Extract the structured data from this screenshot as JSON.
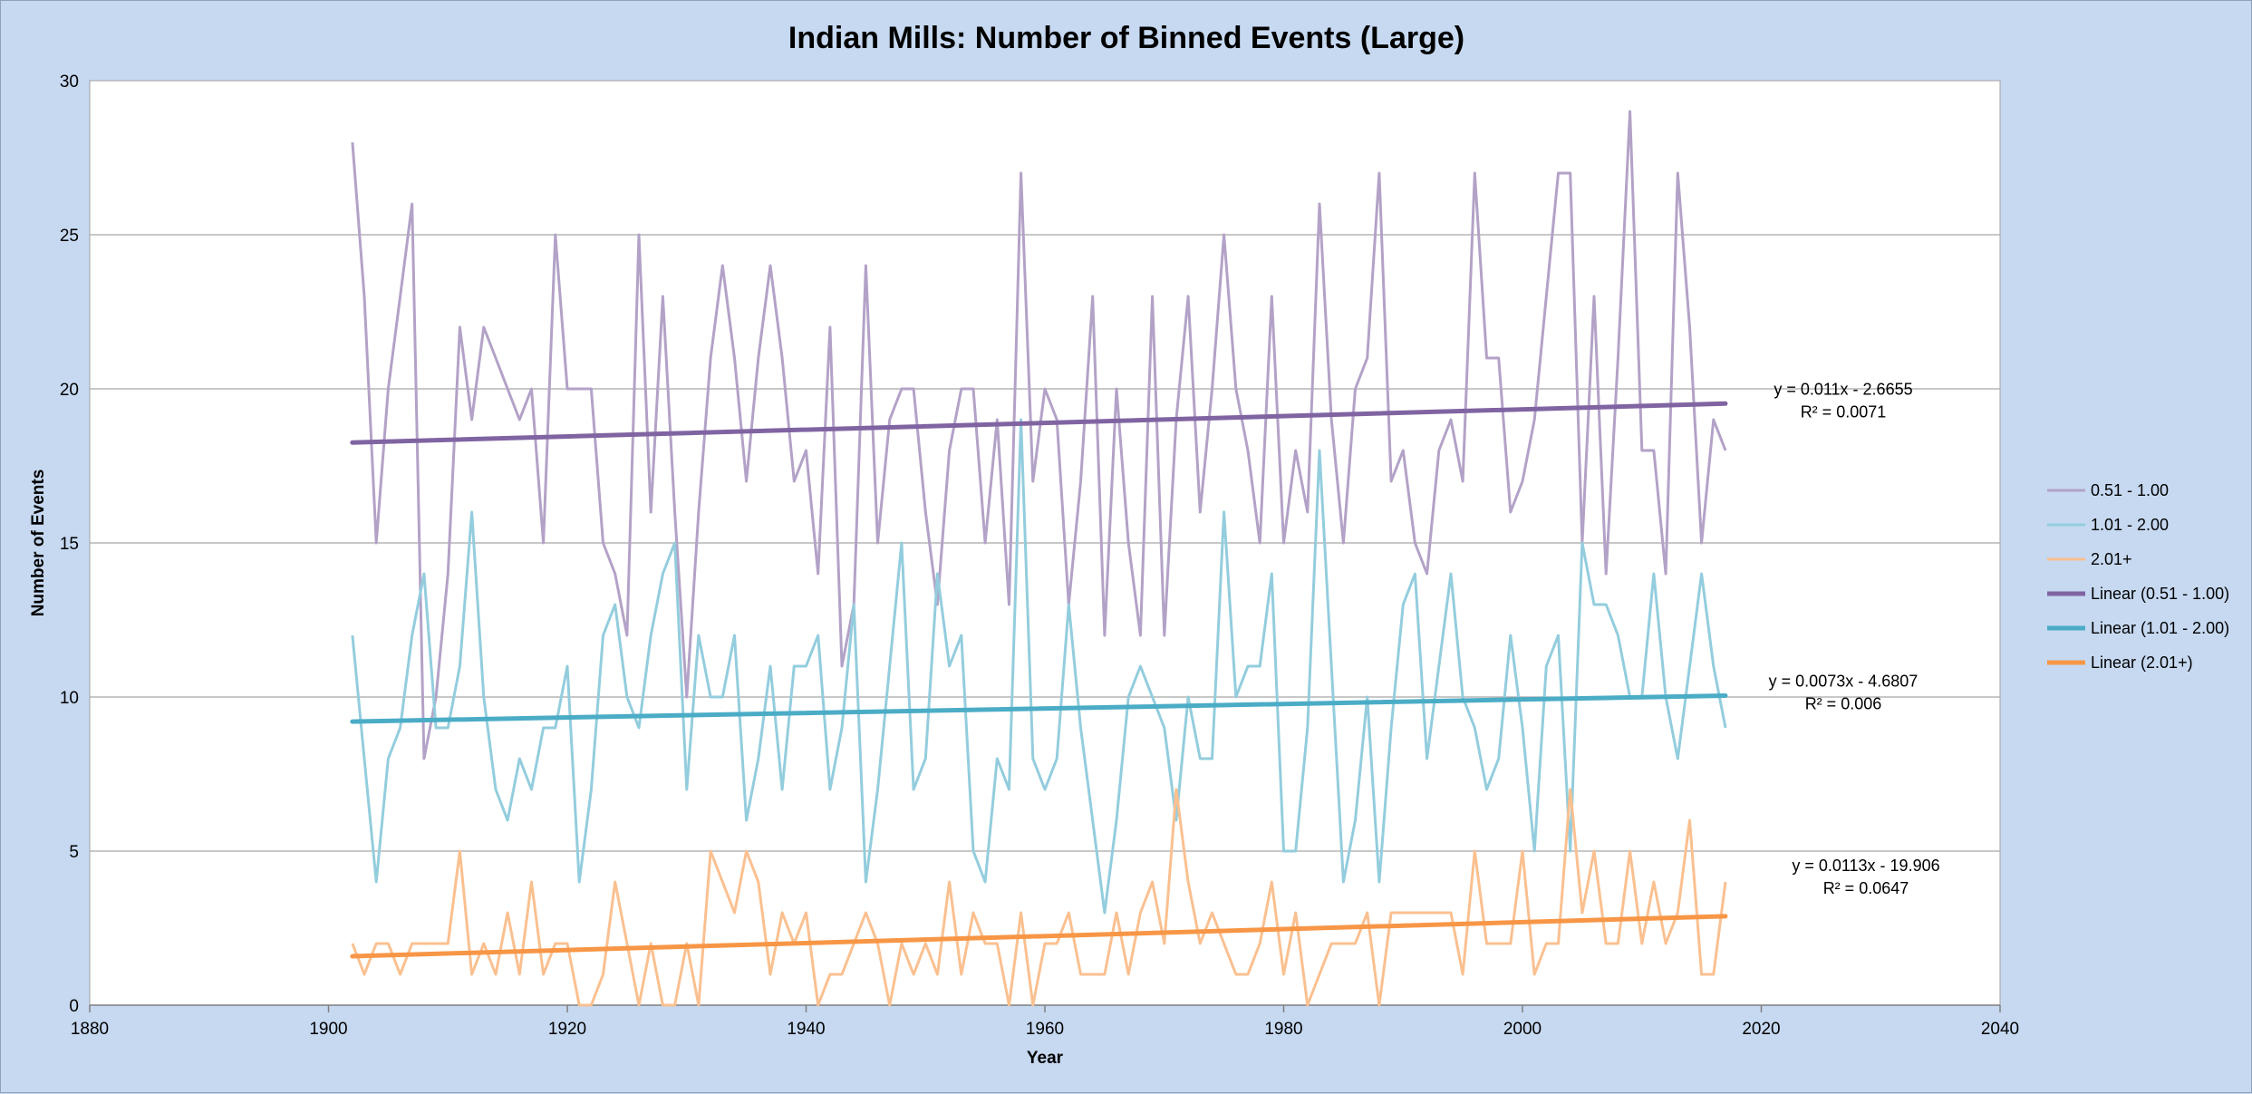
{
  "chart_data": {
    "type": "line",
    "title": "Indian Mills: Number of Binned Events (Large)",
    "xlabel": "Year",
    "ylabel": "Number of Events",
    "xlim": [
      1880,
      2040
    ],
    "ylim": [
      0,
      30
    ],
    "x_ticks": [
      1880,
      1900,
      1920,
      1940,
      1960,
      1980,
      2000,
      2020,
      2040
    ],
    "y_ticks": [
      0,
      5,
      10,
      15,
      20,
      25,
      30
    ],
    "grid": "horizontal",
    "legend_position": "right",
    "x": [
      1902,
      1903,
      1904,
      1905,
      1906,
      1907,
      1908,
      1909,
      1910,
      1911,
      1912,
      1913,
      1914,
      1915,
      1916,
      1917,
      1918,
      1919,
      1920,
      1921,
      1922,
      1923,
      1924,
      1925,
      1926,
      1927,
      1928,
      1929,
      1930,
      1931,
      1932,
      1933,
      1934,
      1935,
      1936,
      1937,
      1938,
      1939,
      1940,
      1941,
      1942,
      1943,
      1944,
      1945,
      1946,
      1947,
      1948,
      1949,
      1950,
      1951,
      1952,
      1953,
      1954,
      1955,
      1956,
      1957,
      1958,
      1959,
      1960,
      1961,
      1962,
      1963,
      1964,
      1965,
      1966,
      1967,
      1968,
      1969,
      1970,
      1971,
      1972,
      1973,
      1974,
      1975,
      1976,
      1977,
      1978,
      1979,
      1980,
      1981,
      1982,
      1983,
      1984,
      1985,
      1986,
      1987,
      1988,
      1989,
      1990,
      1991,
      1992,
      1993,
      1994,
      1995,
      1996,
      1997,
      1998,
      1999,
      2000,
      2001,
      2002,
      2003,
      2004,
      2005,
      2006,
      2007,
      2008,
      2009,
      2010,
      2011,
      2012,
      2013,
      2014,
      2015,
      2016,
      2017
    ],
    "series": [
      {
        "name": "0.51 - 1.00",
        "color": "#b3a2c7",
        "values": [
          28,
          23,
          15,
          20,
          23,
          26,
          8,
          10,
          14,
          22,
          19,
          22,
          21,
          20,
          19,
          20,
          15,
          25,
          20,
          20,
          20,
          15,
          14,
          12,
          25,
          16,
          23,
          16,
          10,
          16,
          21,
          24,
          21,
          17,
          21,
          24,
          21,
          17,
          18,
          14,
          22,
          11,
          13,
          24,
          15,
          19,
          20,
          20,
          16,
          13,
          18,
          20,
          20,
          15,
          19,
          13,
          27,
          17,
          20,
          19,
          13,
          17,
          23,
          12,
          20,
          15,
          12,
          23,
          12,
          19,
          23,
          16,
          20,
          25,
          20,
          18,
          15,
          23,
          15,
          18,
          16,
          26,
          19,
          15,
          20,
          21,
          27,
          17,
          18,
          15,
          14,
          18,
          19,
          17,
          27,
          21,
          21,
          16,
          17,
          19,
          23,
          27,
          27,
          15,
          23,
          14,
          21,
          29,
          18,
          18,
          14,
          27,
          22,
          15,
          19,
          18
        ]
      },
      {
        "name": "1.01 - 2.00",
        "color": "#93cddd",
        "values": [
          12,
          8,
          4,
          8,
          9,
          12,
          14,
          9,
          9,
          11,
          16,
          10,
          7,
          6,
          8,
          7,
          9,
          9,
          11,
          4,
          7,
          12,
          13,
          10,
          9,
          12,
          14,
          15,
          7,
          12,
          10,
          10,
          12,
          6,
          8,
          11,
          7,
          11,
          11,
          12,
          7,
          9,
          13,
          4,
          7,
          11,
          15,
          7,
          8,
          14,
          11,
          12,
          5,
          4,
          8,
          7,
          19,
          8,
          7,
          8,
          13,
          9,
          6,
          3,
          6,
          10,
          11,
          10,
          9,
          6,
          10,
          8,
          8,
          16,
          10,
          11,
          11,
          14,
          5,
          5,
          9,
          18,
          11,
          4,
          6,
          10,
          4,
          9,
          13,
          14,
          8,
          11,
          14,
          10,
          9,
          7,
          8,
          12,
          9,
          5,
          11,
          12,
          5,
          15,
          13,
          13,
          12,
          10,
          10,
          14,
          10,
          8,
          11,
          14,
          11,
          9
        ]
      },
      {
        "name": "2.01+",
        "color": "#fac090",
        "values": [
          2,
          1,
          2,
          2,
          1,
          2,
          2,
          2,
          2,
          5,
          1,
          2,
          1,
          3,
          1,
          4,
          1,
          2,
          2,
          0,
          0,
          1,
          4,
          2,
          0,
          2,
          0,
          0,
          2,
          0,
          5,
          4,
          3,
          5,
          4,
          1,
          3,
          2,
          3,
          0,
          1,
          1,
          2,
          3,
          2,
          0,
          2,
          1,
          2,
          1,
          4,
          1,
          3,
          2,
          2,
          0,
          3,
          0,
          2,
          2,
          3,
          1,
          1,
          1,
          3,
          1,
          3,
          4,
          2,
          7,
          4,
          2,
          3,
          2,
          1,
          1,
          2,
          4,
          1,
          3,
          0,
          1,
          2,
          2,
          2,
          3,
          0,
          3,
          3,
          3,
          3,
          3,
          3,
          1,
          5,
          2,
          2,
          2,
          5,
          1,
          2,
          2,
          7,
          3,
          5,
          2,
          2,
          5,
          2,
          4,
          2,
          3,
          6,
          1,
          1,
          4
        ]
      }
    ],
    "trendlines": [
      {
        "name": "Linear (0.51 - 1.00)",
        "color": "#8064a2",
        "slope": 0.011,
        "intercept": -2.6655,
        "x_range": [
          1902,
          2017
        ],
        "equation": "y = 0.011x - 2.6655",
        "r2": "R² = 0.0071"
      },
      {
        "name": "Linear (1.01 - 2.00)",
        "color": "#4bacc6",
        "slope": 0.0073,
        "intercept": -4.6807,
        "x_range": [
          1902,
          2017
        ],
        "equation": "y = 0.0073x - 4.6807",
        "r2": "R² = 0.006"
      },
      {
        "name": "Linear (2.01+)",
        "color": "#f79646",
        "slope": 0.0113,
        "intercept": -19.906,
        "x_range": [
          1902,
          2017
        ],
        "equation": "y = 0.0113x - 19.906",
        "r2": "R² = 0.0647"
      }
    ]
  }
}
